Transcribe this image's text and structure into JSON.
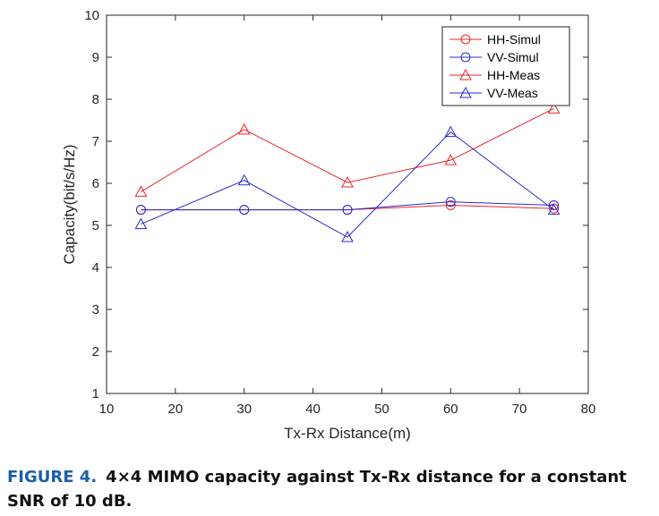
{
  "chart_data": {
    "type": "line",
    "title": "",
    "xlabel": "Tx-Rx Distance(m)",
    "ylabel": "Capacity(bit/s/Hz)",
    "xlim": [
      10,
      80
    ],
    "ylim": [
      1,
      10
    ],
    "xticks": [
      10,
      20,
      30,
      40,
      50,
      60,
      70,
      80
    ],
    "yticks": [
      1,
      2,
      3,
      4,
      5,
      6,
      7,
      8,
      9,
      10
    ],
    "grid": false,
    "legend_position": "top-right",
    "x": [
      15,
      30,
      45,
      60,
      75
    ],
    "series": [
      {
        "name": "HH-Simul",
        "marker": "circle",
        "color": "#e8262b",
        "values": [
          5.37,
          5.37,
          5.37,
          5.48,
          5.4
        ]
      },
      {
        "name": "VV-Simul",
        "marker": "circle",
        "color": "#2a2ad4",
        "values": [
          5.37,
          5.37,
          5.37,
          5.56,
          5.48
        ]
      },
      {
        "name": "HH-Meas",
        "marker": "triangle",
        "color": "#e8262b",
        "values": [
          5.8,
          7.28,
          6.02,
          6.55,
          7.78
        ]
      },
      {
        "name": "VV-Meas",
        "marker": "triangle",
        "color": "#2a2ad4",
        "values": [
          5.03,
          6.07,
          4.72,
          7.22,
          5.37
        ]
      }
    ]
  },
  "caption": {
    "label": "FIGURE 4.",
    "text": "4×4 MIMO capacity against Tx-Rx distance for a constant SNR of 10 dB."
  }
}
